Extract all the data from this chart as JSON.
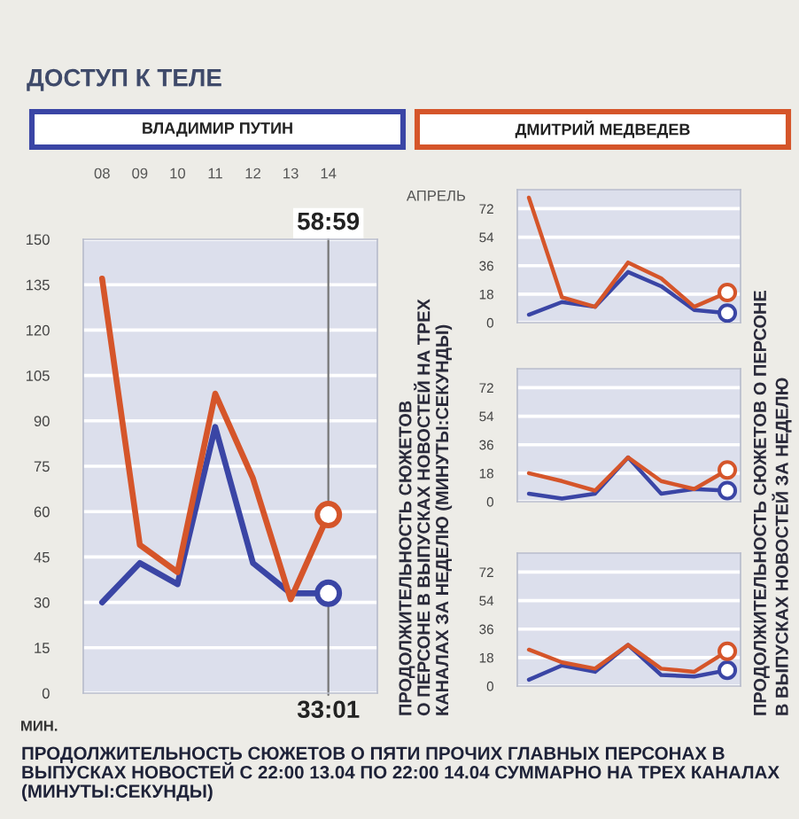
{
  "chart_data": [
    {
      "type": "line",
      "title": "ДОСТУП К ТЕЛЕ",
      "xlabel": "АПРЕЛЬ",
      "ylabel": "МИН.",
      "categories": [
        "08",
        "09",
        "10",
        "11",
        "12",
        "13",
        "14"
      ],
      "series": [
        {
          "name": "ВЛАДИМИР ПУТИН",
          "color": "#3a45a5",
          "values": [
            30,
            43,
            36,
            88,
            43,
            33,
            33
          ]
        },
        {
          "name": "ДМИТРИЙ МЕДВЕДЕВ",
          "color": "#d5552a",
          "values": [
            137,
            49,
            40,
            99,
            71,
            31,
            59
          ]
        },
        {
          "type": "scatter",
          "color": "#3a45a5",
          "values": [
            null,
            null,
            null,
            null,
            null,
            null,
            33
          ],
          "marker": "circle"
        },
        {
          "type": "scatter",
          "color": "#d5552a",
          "values": [
            null,
            null,
            null,
            null,
            null,
            null,
            59
          ],
          "marker": "circle"
        }
      ],
      "ylim": [
        0,
        150
      ],
      "yticks": [
        0,
        15,
        30,
        45,
        60,
        75,
        90,
        105,
        120,
        135,
        150
      ],
      "grid": "y",
      "legend": "top",
      "line_style": "solid",
      "annotations": [
        {
          "text": "58:59",
          "x": "14",
          "y": 59
        },
        {
          "text": "33:01",
          "x": "14",
          "y": 33
        },
        "ПРОДОЛЖИТЕЛЬНОСТЬ СЮЖЕТОВ\nО ПЕРСОНЕ В ВЫПУСКАХ НОВОСТЕЙ НА ТРЕХ\nКАНАЛАХ ЗА НЕДЕЛЮ (МИНУТЫ:СЕКУНДЫ)",
        "ПРОДОЛЖИТЕЛЬНОСТЬ СЮЖЕТОВ О ПЯТИ ПРОЧИХ ГЛАВНЫХ ПЕРСОНАХ В ВЫПУСКАХ НОВОСТЕЙ С 22:00 13.04 ПО 22:00 14.04 СУММАРНО НА ТРЕХ КАНАЛАХ (МИНУТЫ:СЕКУНДЫ)"
      ]
    },
    {
      "type": "line",
      "categories": [
        null,
        null,
        null,
        null,
        null,
        null,
        null
      ],
      "tick_labels": "y",
      "series": [
        {
          "color": "#3a45a5",
          "values": [
            5,
            13,
            10,
            32,
            23,
            8,
            6
          ]
        },
        {
          "color": "#d5552a",
          "values": [
            79,
            16,
            10,
            38,
            28,
            10,
            19
          ]
        },
        {
          "type": "scatter",
          "color": "#3a45a5",
          "values": [
            null,
            null,
            null,
            null,
            null,
            null,
            6
          ],
          "marker": "circle"
        },
        {
          "type": "scatter",
          "color": "#d5552a",
          "values": [
            null,
            null,
            null,
            null,
            null,
            null,
            19
          ],
          "marker": "circle"
        }
      ],
      "ylim": [
        0,
        84
      ],
      "yticks": [
        0,
        18,
        36,
        54,
        72
      ],
      "grid": "y",
      "line_style": "solid",
      "annotations": [
        "ПРОДОЛЖИТЕЛЬНОСТЬ СЮЖЕТОВ О ПЕРСОНЕ\nВ ВЫПУСКАХ НОВОСТЕЙ ЗА НЕДЕЛЮ"
      ]
    },
    {
      "type": "line",
      "categories": [
        null,
        null,
        null,
        null,
        null,
        null,
        null
      ],
      "tick_labels": "y",
      "series": [
        {
          "color": "#3a45a5",
          "values": [
            5,
            2,
            5,
            28,
            5,
            8,
            7
          ]
        },
        {
          "color": "#d5552a",
          "values": [
            18,
            13,
            7,
            28,
            13,
            8,
            20
          ]
        },
        {
          "type": "scatter",
          "color": "#3a45a5",
          "values": [
            null,
            null,
            null,
            null,
            null,
            null,
            7
          ],
          "marker": "circle"
        },
        {
          "type": "scatter",
          "color": "#d5552a",
          "values": [
            null,
            null,
            null,
            null,
            null,
            null,
            20
          ],
          "marker": "circle"
        }
      ],
      "ylim": [
        0,
        84
      ],
      "yticks": [
        0,
        18,
        36,
        54,
        72
      ],
      "grid": "y",
      "line_style": "solid"
    },
    {
      "type": "line",
      "categories": [
        null,
        null,
        null,
        null,
        null,
        null,
        null
      ],
      "tick_labels": "y",
      "series": [
        {
          "color": "#3a45a5",
          "values": [
            4,
            13,
            9,
            26,
            7,
            6,
            10
          ]
        },
        {
          "color": "#d5552a",
          "values": [
            23,
            15,
            11,
            26,
            11,
            9,
            22
          ]
        },
        {
          "type": "scatter",
          "color": "#3a45a5",
          "values": [
            null,
            null,
            null,
            null,
            null,
            null,
            10
          ],
          "marker": "circle"
        },
        {
          "type": "scatter",
          "color": "#d5552a",
          "values": [
            null,
            null,
            null,
            null,
            null,
            null,
            22
          ],
          "marker": "circle"
        }
      ],
      "ylim": [
        0,
        84
      ],
      "yticks": [
        0,
        18,
        36,
        54,
        72
      ],
      "grid": "y",
      "line_style": "solid"
    }
  ]
}
